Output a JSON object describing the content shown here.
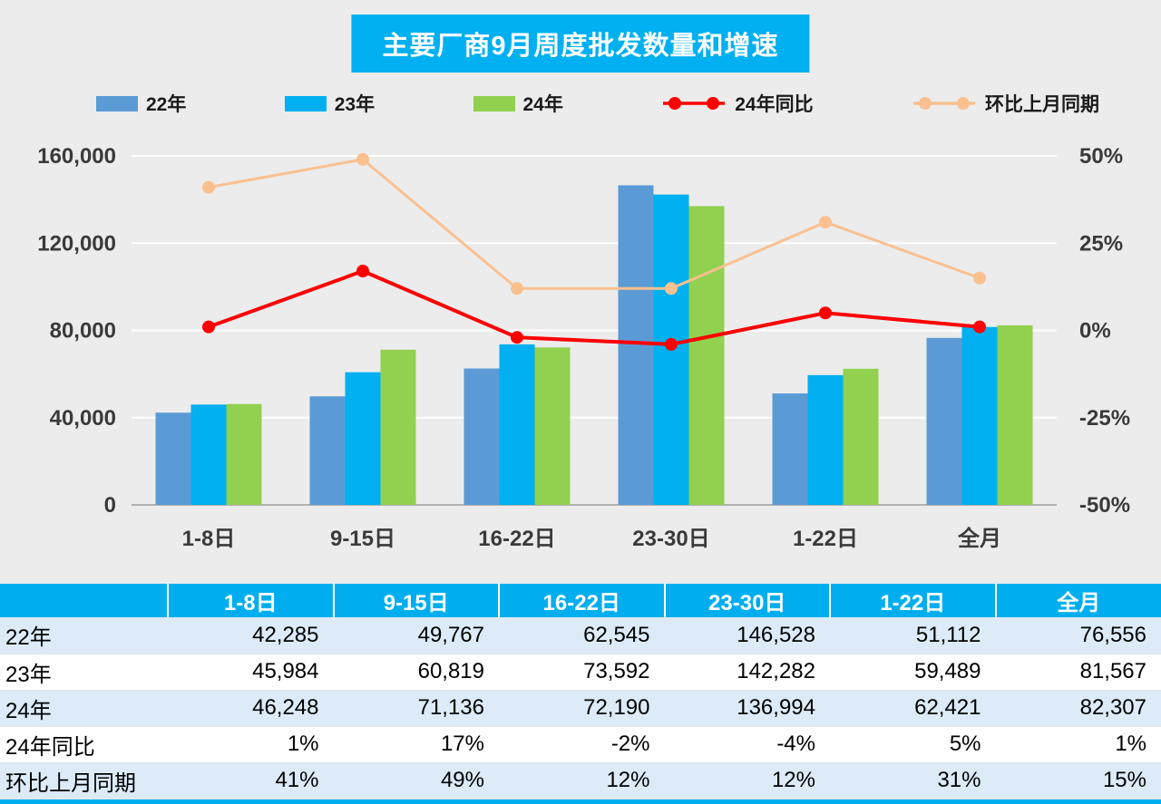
{
  "title": "主要厂商9月周度批发数量和增速",
  "legend": [
    {
      "label": "22年",
      "type": "bar",
      "color": "#5B9BD5"
    },
    {
      "label": "23年",
      "type": "bar",
      "color": "#00B0F0"
    },
    {
      "label": "24年",
      "type": "bar",
      "color": "#92D050"
    },
    {
      "label": "24年同比",
      "type": "line",
      "color": "#FF0000"
    },
    {
      "label": "环比上月同期",
      "type": "line",
      "color": "#FAC090"
    }
  ],
  "chart_data": {
    "type": "bar+line combo",
    "title": "主要厂商9月周度批发数量和增速",
    "categories": [
      "1-8日",
      "9-15日",
      "16-22日",
      "23-30日",
      "1-22日",
      "全月"
    ],
    "bar_series": [
      {
        "name": "22年",
        "color": "#5B9BD5",
        "values": [
          42285,
          49767,
          62545,
          146528,
          51112,
          76556
        ]
      },
      {
        "name": "23年",
        "color": "#00B0F0",
        "values": [
          45984,
          60819,
          73592,
          142282,
          59489,
          81567
        ]
      },
      {
        "name": "24年",
        "color": "#92D050",
        "values": [
          46248,
          71136,
          72190,
          136994,
          62421,
          82307
        ]
      }
    ],
    "line_series": [
      {
        "name": "24年同比",
        "color": "#FF0000",
        "values_pct": [
          1,
          17,
          -2,
          -4,
          5,
          1
        ]
      },
      {
        "name": "环比上月同期",
        "color": "#FAC090",
        "values_pct": [
          41,
          49,
          12,
          12,
          31,
          15
        ]
      }
    ],
    "left_axis": {
      "min": 0,
      "max": 160000,
      "ticks": [
        0,
        40000,
        80000,
        120000,
        160000
      ],
      "labels": [
        "0",
        "40,000",
        "80,000",
        "120,000",
        "160,000"
      ]
    },
    "right_axis": {
      "min": -50,
      "max": 50,
      "ticks": [
        -50,
        -25,
        0,
        25,
        50
      ],
      "labels": [
        "-50%",
        "-25%",
        "0%",
        "25%",
        "50%"
      ]
    },
    "grid": "horizontal",
    "legend_position": "top"
  },
  "table": {
    "header": [
      "",
      "1-8日",
      "9-15日",
      "16-22日",
      "23-30日",
      "1-22日",
      "全月"
    ],
    "rows": [
      {
        "label": "22年",
        "values": [
          "42,285",
          "49,767",
          "62,545",
          "146,528",
          "51,112",
          "76,556"
        ]
      },
      {
        "label": "23年",
        "values": [
          "45,984",
          "60,819",
          "73,592",
          "142,282",
          "59,489",
          "81,567"
        ]
      },
      {
        "label": "24年",
        "values": [
          "46,248",
          "71,136",
          "72,190",
          "136,994",
          "62,421",
          "82,307"
        ]
      },
      {
        "label": "24年同比",
        "values": [
          "1%",
          "17%",
          "-2%",
          "-4%",
          "5%",
          "1%"
        ]
      },
      {
        "label": "环比上月同期",
        "values": [
          "41%",
          "49%",
          "12%",
          "12%",
          "31%",
          "15%"
        ]
      }
    ]
  },
  "colors": {
    "title_bg": "#00B0F0",
    "header_bg": "#00AEEF",
    "band_row_bg": "#DCEBF7",
    "chart_bg": "#ECECEC",
    "accent_bar": "#00AEEF"
  }
}
